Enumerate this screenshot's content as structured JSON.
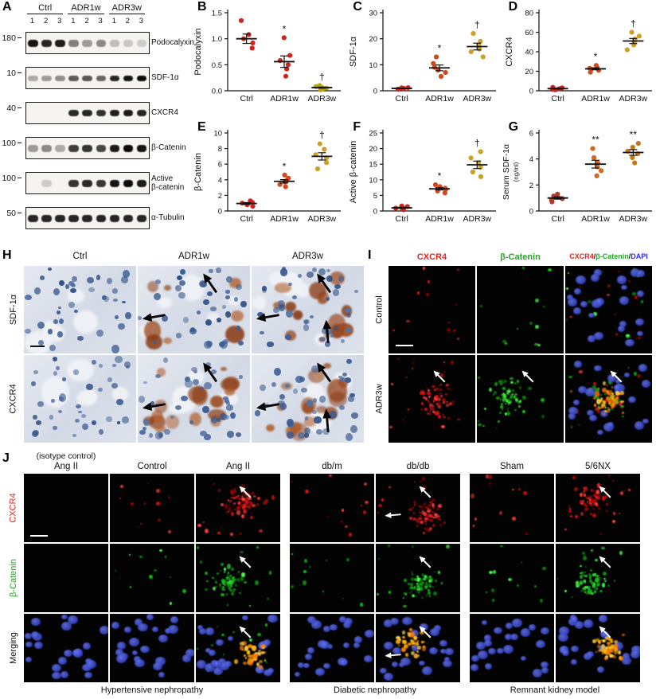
{
  "panel_a": {
    "label": "A",
    "group_labels": [
      "Ctrl",
      "ADR1w",
      "ADR3w"
    ],
    "lane_numbers": [
      "1",
      "2",
      "3",
      "1",
      "2",
      "3",
      "1",
      "2",
      "3"
    ],
    "rows": [
      {
        "mw": "180",
        "protein": "Podocalyxin",
        "band_height": 9,
        "bands": [
          0.95,
          0.88,
          0.92,
          0.42,
          0.3,
          0.38,
          0.12,
          0.08,
          0.06
        ]
      },
      {
        "mw": "10",
        "protein": "SDF-1α",
        "band_height": 7,
        "bands": [
          0.22,
          0.28,
          0.35,
          0.6,
          0.62,
          0.55,
          0.85,
          0.95,
          1.0
        ]
      },
      {
        "mw": "40",
        "protein": "CXCR4",
        "band_height": 8,
        "bands": [
          0,
          0,
          0,
          0.85,
          0.88,
          0.82,
          0.9,
          0.92,
          0.88
        ]
      },
      {
        "mw": "100",
        "protein": "β-Catenin",
        "band_height": 9,
        "bands": [
          0.3,
          0.38,
          0.22,
          0.75,
          0.8,
          0.72,
          0.92,
          1.0,
          0.95
        ]
      },
      {
        "mw": "100",
        "protein": "Active\nβ-catenin",
        "band_height": 9,
        "bands": [
          0,
          0.06,
          0,
          0.8,
          0.85,
          0.78,
          0.95,
          1.0,
          0.92
        ]
      },
      {
        "mw": "50",
        "protein": "α-Tubulin",
        "band_height": 9,
        "bands": [
          0.88,
          0.88,
          0.88,
          0.88,
          0.88,
          0.88,
          0.88,
          0.88,
          0.88
        ]
      }
    ]
  },
  "chart_data": [
    {
      "id": "B",
      "type": "scatter",
      "ylabel": "Podocalyxin",
      "ylim": [
        0,
        1.5
      ],
      "yticks": [
        0,
        0.5,
        1,
        1.5
      ],
      "tick_decimals": 1,
      "categories": [
        "Ctrl",
        "ADR1w",
        "ADR3w"
      ],
      "series": [
        {
          "category": "Ctrl",
          "color": "#d1231b",
          "values": [
            0.82,
            0.92,
            1.0,
            1.08,
            1.35
          ],
          "mean": 1.0,
          "sem": 0.09,
          "sig": ""
        },
        {
          "category": "ADR1w",
          "color": "#d1231b",
          "values": [
            0.28,
            0.42,
            0.5,
            0.58,
            0.68,
            1.02
          ],
          "mean": 0.56,
          "sem": 0.11,
          "sig": "*"
        },
        {
          "category": "ADR3w",
          "color": "#b6a40e",
          "values": [
            0.02,
            0.03,
            0.05,
            0.06,
            0.08,
            0.1
          ],
          "mean": 0.06,
          "sem": 0.01,
          "sig": "†"
        }
      ]
    },
    {
      "id": "C",
      "type": "scatter",
      "ylabel": "SDF-1α",
      "ylim": [
        0,
        30
      ],
      "yticks": [
        0,
        10,
        20,
        30
      ],
      "tick_decimals": 0,
      "categories": [
        "Ctrl",
        "ADR1w",
        "ADR3w"
      ],
      "series": [
        {
          "category": "Ctrl",
          "color": "#d1231b",
          "values": [
            0.6,
            0.8,
            0.9,
            1.0,
            1.1,
            1.2
          ],
          "mean": 0.9,
          "sem": 0.1,
          "sig": ""
        },
        {
          "category": "ADR1w",
          "color": "#cf4a1f",
          "values": [
            5.5,
            7,
            8,
            9,
            10.5,
            13
          ],
          "mean": 8.8,
          "sem": 1.1,
          "sig": "*"
        },
        {
          "category": "ADR3w",
          "color": "#c9a227",
          "values": [
            13,
            15,
            16,
            17.5,
            19,
            22
          ],
          "mean": 17,
          "sem": 1.3,
          "sig": "†"
        }
      ]
    },
    {
      "id": "D",
      "type": "scatter",
      "ylabel": "CXCR4",
      "ylim": [
        0,
        80
      ],
      "yticks": [
        0,
        20,
        40,
        60,
        80
      ],
      "tick_decimals": 0,
      "categories": [
        "Ctrl",
        "ADR1w",
        "ADR3w"
      ],
      "series": [
        {
          "category": "Ctrl",
          "color": "#d1231b",
          "values": [
            1,
            1.5,
            2,
            2.5,
            3,
            3.5
          ],
          "mean": 2.2,
          "sem": 0.4,
          "sig": ""
        },
        {
          "category": "ADR1w",
          "color": "#cf4a1f",
          "values": [
            19,
            21,
            22,
            23,
            24,
            26
          ],
          "mean": 22.5,
          "sem": 1.0,
          "sig": "*"
        },
        {
          "category": "ADR3w",
          "color": "#c9a227",
          "values": [
            42,
            47,
            50,
            53,
            56,
            60
          ],
          "mean": 51,
          "sem": 2.6,
          "sig": "†"
        }
      ]
    },
    {
      "id": "E",
      "type": "scatter",
      "ylabel": "β-Catenin",
      "ylim": [
        0,
        10
      ],
      "yticks": [
        0,
        2,
        4,
        6,
        8,
        10
      ],
      "tick_decimals": 0,
      "categories": [
        "Ctrl",
        "ADR1w",
        "ADR3w"
      ],
      "series": [
        {
          "category": "Ctrl",
          "color": "#d1231b",
          "values": [
            0.6,
            0.8,
            1.0,
            1.1,
            1.3
          ],
          "mean": 0.96,
          "sem": 0.12,
          "sig": ""
        },
        {
          "category": "ADR1w",
          "color": "#cf4a1f",
          "values": [
            3.1,
            3.4,
            3.7,
            3.9,
            4.2,
            4.6
          ],
          "mean": 3.8,
          "sem": 0.22,
          "sig": "*"
        },
        {
          "category": "ADR3w",
          "color": "#c9a227",
          "values": [
            5.4,
            6.2,
            6.8,
            7.2,
            7.9,
            8.6
          ],
          "mean": 7.0,
          "sem": 0.47,
          "sig": "†"
        }
      ]
    },
    {
      "id": "F",
      "type": "scatter",
      "ylabel": "Active β-catenin",
      "ylim": [
        0,
        25
      ],
      "yticks": [
        0,
        5,
        10,
        15,
        20,
        25
      ],
      "tick_decimals": 0,
      "categories": [
        "Ctrl",
        "ADR1w",
        "ADR3w"
      ],
      "series": [
        {
          "category": "Ctrl",
          "color": "#d1231b",
          "values": [
            0.4,
            0.7,
            0.9,
            1.1,
            1.4,
            1.6
          ],
          "mean": 1.0,
          "sem": 0.18,
          "sig": ""
        },
        {
          "category": "ADR1w",
          "color": "#cf4a1f",
          "values": [
            5.8,
            6.4,
            6.9,
            7.3,
            7.8,
            8.4
          ],
          "mean": 7.1,
          "sem": 0.38,
          "sig": "*"
        },
        {
          "category": "ADR3w",
          "color": "#c9a227",
          "values": [
            11,
            12.5,
            14,
            15.5,
            17,
            19
          ],
          "mean": 14.8,
          "sem": 1.2,
          "sig": "†"
        }
      ]
    },
    {
      "id": "G",
      "type": "scatter",
      "ylabel": "Serum SDF-1α",
      "ylabel2": "(ng/ml)",
      "ylim": [
        0,
        6
      ],
      "yticks": [
        0,
        2,
        4,
        6
      ],
      "tick_decimals": 0,
      "categories": [
        "Ctrl",
        "ADR1w",
        "ADR3w"
      ],
      "series": [
        {
          "category": "Ctrl",
          "color": "#b03a2e",
          "values": [
            0.7,
            0.85,
            0.95,
            1.05,
            1.15,
            1.3
          ],
          "mean": 1.0,
          "sem": 0.09,
          "sig": ""
        },
        {
          "category": "ADR1w",
          "color": "#d2691e",
          "values": [
            2.7,
            3.1,
            3.4,
            3.7,
            4.1,
            4.8
          ],
          "mean": 3.6,
          "sem": 0.3,
          "sig": "**"
        },
        {
          "category": "ADR3w",
          "color": "#c17817",
          "values": [
            3.7,
            4.1,
            4.4,
            4.6,
            4.9,
            5.2
          ],
          "mean": 4.5,
          "sem": 0.22,
          "sig": "**"
        }
      ]
    }
  ],
  "panel_h": {
    "label": "H",
    "col_labels": [
      "Ctrl",
      "ADR1w",
      "ADR3w"
    ],
    "row_labels": [
      "SDF-1α",
      "CXCR4"
    ],
    "images": [
      {
        "row": "SDF-1α",
        "col": "Ctrl",
        "stain": "none",
        "arrows": 0,
        "scale_bar": true
      },
      {
        "row": "SDF-1α",
        "col": "ADR1w",
        "stain": "moderate",
        "arrows": 2
      },
      {
        "row": "SDF-1α",
        "col": "ADR3w",
        "stain": "strong",
        "arrows": 3
      },
      {
        "row": "CXCR4",
        "col": "Ctrl",
        "stain": "none",
        "arrows": 0
      },
      {
        "row": "CXCR4",
        "col": "ADR1w",
        "stain": "strong",
        "arrows": 2
      },
      {
        "row": "CXCR4",
        "col": "ADR3w",
        "stain": "strong",
        "arrows": 3
      }
    ]
  },
  "panel_i": {
    "label": "I",
    "col_labels": [
      {
        "parts": [
          {
            "text": "CXCR4",
            "color": "#e8231c"
          }
        ]
      },
      {
        "parts": [
          {
            "text": "β-Catenin",
            "color": "#1faa1f"
          }
        ]
      },
      {
        "parts": [
          {
            "text": "CXCR4",
            "color": "#e8231c"
          },
          {
            "text": "/",
            "color": "#111111"
          },
          {
            "text": "β-Catenin",
            "color": "#1faa1f"
          },
          {
            "text": "/",
            "color": "#111111"
          },
          {
            "text": "DAPI",
            "color": "#2b2bee"
          }
        ]
      }
    ],
    "row_labels": [
      "Control",
      "ADR3w"
    ],
    "rows": [
      {
        "row_label": "Control",
        "cells": [
          {
            "red": 1,
            "scale_bar": true
          },
          {
            "green": 1
          },
          {
            "red": 1,
            "green": 1,
            "blue": 3
          }
        ]
      },
      {
        "row_label": "ADR3w",
        "cells": [
          {
            "red": 3,
            "arrows": 1
          },
          {
            "green": 3,
            "arrows": 1
          },
          {
            "red": 2,
            "green": 2,
            "blue": 3,
            "yellow": 3,
            "arrows": 1
          }
        ]
      }
    ]
  },
  "panel_j": {
    "label": "J",
    "isotype_note": "(isotype control)",
    "col_labels": [
      "Ang II",
      "Control",
      "Ang II",
      "db/m",
      "db/db",
      "Sham",
      "5/6NX"
    ],
    "row_labels": [
      {
        "text": "CXCR4",
        "color": "#e8231c"
      },
      {
        "text": "β-Catenin",
        "color": "#1faa1f"
      },
      {
        "text": "Merging",
        "color": "#111111"
      }
    ],
    "group_captions": [
      "Hypertensive nephropathy",
      "Diabetic nephropathy",
      "Remnant kidney model"
    ],
    "rows": [
      {
        "channel": "CXCR4",
        "cells": [
          {
            "red": 0,
            "scale_bar": true
          },
          {
            "red": 1
          },
          {
            "red": 3,
            "arrows": 1
          },
          {
            "red": 1
          },
          {
            "red": 3,
            "arrows": 2
          },
          {
            "red": 1
          },
          {
            "red": 3,
            "arrows": 1
          }
        ]
      },
      {
        "channel": "β-Catenin",
        "cells": [
          {
            "green": 0
          },
          {
            "green": 1
          },
          {
            "green": 3,
            "arrows": 1
          },
          {
            "green": 1
          },
          {
            "green": 3,
            "arrows": 1
          },
          {
            "green": 1
          },
          {
            "green": 3,
            "arrows": 1
          }
        ]
      },
      {
        "channel": "Merging",
        "cells": [
          {
            "blue": 3
          },
          {
            "blue": 3
          },
          {
            "blue": 3,
            "yellow": 3,
            "green": 1,
            "arrows": 1
          },
          {
            "blue": 3
          },
          {
            "blue": 3,
            "yellow": 3,
            "arrows": 2
          },
          {
            "blue": 3
          },
          {
            "blue": 3,
            "yellow": 3,
            "arrows": 1
          }
        ]
      }
    ]
  }
}
